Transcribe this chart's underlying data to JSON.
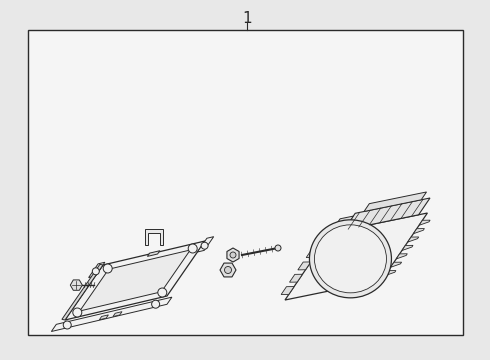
{
  "bg_color": "#e8e8e8",
  "inner_bg": "#f0f0f0",
  "line_color": "#2a2a2a",
  "title": "1",
  "fig_width": 4.9,
  "fig_height": 3.6,
  "dpi": 100
}
